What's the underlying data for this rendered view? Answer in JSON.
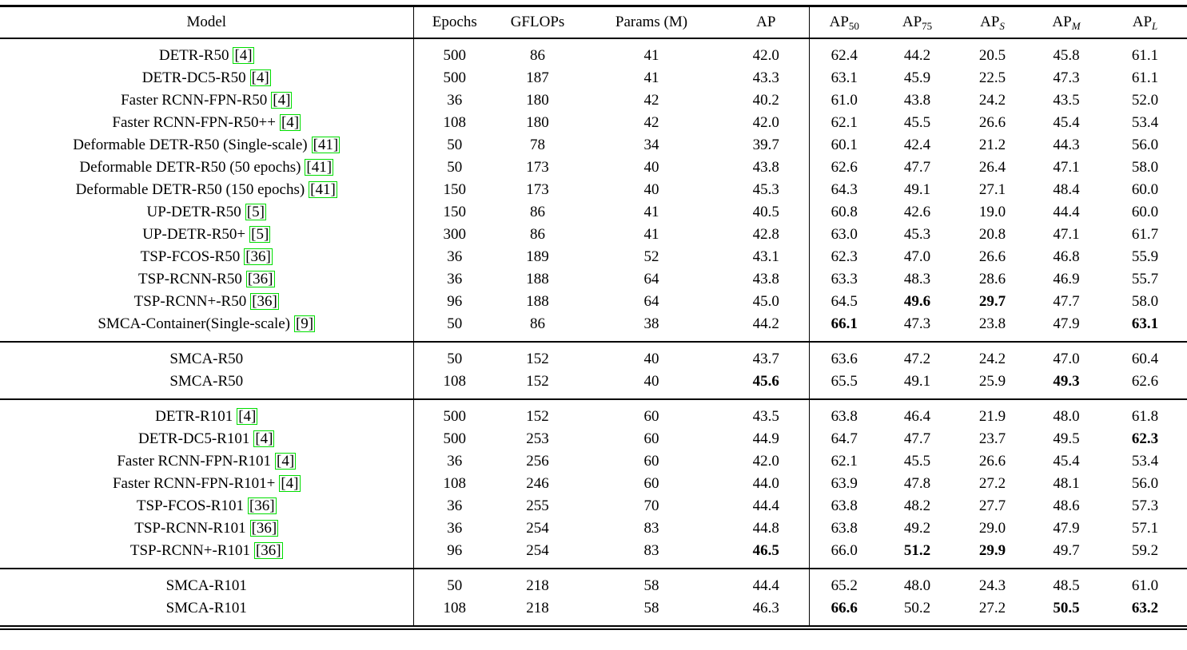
{
  "table": {
    "citation_box_color": "#00dd00",
    "header": {
      "model": "Model",
      "epochs": "Epochs",
      "gflops": "GFLOPs",
      "params": "Params (M)",
      "metrics": [
        {
          "base": "AP",
          "sub": "",
          "italic": false
        },
        {
          "base": "AP",
          "sub": "50",
          "italic": false
        },
        {
          "base": "AP",
          "sub": "75",
          "italic": false
        },
        {
          "base": "AP",
          "sub": "S",
          "italic": true
        },
        {
          "base": "AP",
          "sub": "M",
          "italic": true
        },
        {
          "base": "AP",
          "sub": "L",
          "italic": true
        }
      ]
    },
    "groups": [
      {
        "rows": [
          {
            "model": "DETR-R50",
            "cite": "4",
            "epochs": "500",
            "gflops": "86",
            "params": "41",
            "ap": [
              "42.0",
              "62.4",
              "44.2",
              "20.5",
              "45.8",
              "61.1"
            ],
            "bold": []
          },
          {
            "model": "DETR-DC5-R50",
            "cite": "4",
            "epochs": "500",
            "gflops": "187",
            "params": "41",
            "ap": [
              "43.3",
              "63.1",
              "45.9",
              "22.5",
              "47.3",
              "61.1"
            ],
            "bold": []
          },
          {
            "model": "Faster RCNN-FPN-R50",
            "cite": "4",
            "epochs": "36",
            "gflops": "180",
            "params": "42",
            "ap": [
              "40.2",
              "61.0",
              "43.8",
              "24.2",
              "43.5",
              "52.0"
            ],
            "bold": []
          },
          {
            "model": "Faster RCNN-FPN-R50++",
            "cite": "4",
            "epochs": "108",
            "gflops": "180",
            "params": "42",
            "ap": [
              "42.0",
              "62.1",
              "45.5",
              "26.6",
              "45.4",
              "53.4"
            ],
            "bold": []
          },
          {
            "model": "Deformable DETR-R50 (Single-scale)",
            "cite": "41",
            "epochs": "50",
            "gflops": "78",
            "params": "34",
            "ap": [
              "39.7",
              "60.1",
              "42.4",
              "21.2",
              "44.3",
              "56.0"
            ],
            "bold": []
          },
          {
            "model": "Deformable DETR-R50 (50 epochs)",
            "cite": "41",
            "epochs": "50",
            "gflops": "173",
            "params": "40",
            "ap": [
              "43.8",
              "62.6",
              "47.7",
              "26.4",
              "47.1",
              "58.0"
            ],
            "bold": []
          },
          {
            "model": "Deformable DETR-R50 (150 epochs)",
            "cite": "41",
            "epochs": "150",
            "gflops": "173",
            "params": "40",
            "ap": [
              "45.3",
              "64.3",
              "49.1",
              "27.1",
              "48.4",
              "60.0"
            ],
            "bold": []
          },
          {
            "model": "UP-DETR-R50",
            "cite": "5",
            "epochs": "150",
            "gflops": "86",
            "params": "41",
            "ap": [
              "40.5",
              "60.8",
              "42.6",
              "19.0",
              "44.4",
              "60.0"
            ],
            "bold": []
          },
          {
            "model": "UP-DETR-R50+",
            "cite": "5",
            "epochs": "300",
            "gflops": "86",
            "params": "41",
            "ap": [
              "42.8",
              "63.0",
              "45.3",
              "20.8",
              "47.1",
              "61.7"
            ],
            "bold": []
          },
          {
            "model": "TSP-FCOS-R50",
            "cite": "36",
            "epochs": "36",
            "gflops": "189",
            "params": "52",
            "ap": [
              "43.1",
              "62.3",
              "47.0",
              "26.6",
              "46.8",
              "55.9"
            ],
            "bold": []
          },
          {
            "model": "TSP-RCNN-R50",
            "cite": "36",
            "epochs": "36",
            "gflops": "188",
            "params": "64",
            "ap": [
              "43.8",
              "63.3",
              "48.3",
              "28.6",
              "46.9",
              "55.7"
            ],
            "bold": []
          },
          {
            "model": "TSP-RCNN+-R50",
            "cite": "36",
            "epochs": "96",
            "gflops": "188",
            "params": "64",
            "ap": [
              "45.0",
              "64.5",
              "49.6",
              "29.7",
              "47.7",
              "58.0"
            ],
            "bold": [
              2,
              3
            ]
          },
          {
            "model": "SMCA-Container(Single-scale)",
            "cite": "9",
            "epochs": "50",
            "gflops": "86",
            "params": "38",
            "ap": [
              "44.2",
              "66.1",
              "47.3",
              "23.8",
              "47.9",
              "63.1"
            ],
            "bold": [
              1,
              5
            ]
          }
        ]
      },
      {
        "rows": [
          {
            "model": "SMCA-R50",
            "cite": null,
            "epochs": "50",
            "gflops": "152",
            "params": "40",
            "ap": [
              "43.7",
              "63.6",
              "47.2",
              "24.2",
              "47.0",
              "60.4"
            ],
            "bold": []
          },
          {
            "model": "SMCA-R50",
            "cite": null,
            "epochs": "108",
            "gflops": "152",
            "params": "40",
            "ap": [
              "45.6",
              "65.5",
              "49.1",
              "25.9",
              "49.3",
              "62.6"
            ],
            "bold": [
              0,
              4
            ]
          }
        ]
      },
      {
        "rows": [
          {
            "model": "DETR-R101",
            "cite": "4",
            "epochs": "500",
            "gflops": "152",
            "params": "60",
            "ap": [
              "43.5",
              "63.8",
              "46.4",
              "21.9",
              "48.0",
              "61.8"
            ],
            "bold": []
          },
          {
            "model": "DETR-DC5-R101",
            "cite": "4",
            "epochs": "500",
            "gflops": "253",
            "params": "60",
            "ap": [
              "44.9",
              "64.7",
              "47.7",
              "23.7",
              "49.5",
              "62.3"
            ],
            "bold": [
              5
            ]
          },
          {
            "model": "Faster RCNN-FPN-R101",
            "cite": "4",
            "epochs": "36",
            "gflops": "256",
            "params": "60",
            "ap": [
              "42.0",
              "62.1",
              "45.5",
              "26.6",
              "45.4",
              "53.4"
            ],
            "bold": []
          },
          {
            "model": "Faster RCNN-FPN-R101+",
            "cite": "4",
            "epochs": "108",
            "gflops": "246",
            "params": "60",
            "ap": [
              "44.0",
              "63.9",
              "47.8",
              "27.2",
              "48.1",
              "56.0"
            ],
            "bold": []
          },
          {
            "model": "TSP-FCOS-R101",
            "cite": "36",
            "epochs": "36",
            "gflops": "255",
            "params": "70",
            "ap": [
              "44.4",
              "63.8",
              "48.2",
              "27.7",
              "48.6",
              "57.3"
            ],
            "bold": []
          },
          {
            "model": "TSP-RCNN-R101",
            "cite": "36",
            "epochs": "36",
            "gflops": "254",
            "params": "83",
            "ap": [
              "44.8",
              "63.8",
              "49.2",
              "29.0",
              "47.9",
              "57.1"
            ],
            "bold": []
          },
          {
            "model": "TSP-RCNN+-R101",
            "cite": "36",
            "epochs": "96",
            "gflops": "254",
            "params": "83",
            "ap": [
              "46.5",
              "66.0",
              "51.2",
              "29.9",
              "49.7",
              "59.2"
            ],
            "bold": [
              0,
              2,
              3
            ]
          }
        ]
      },
      {
        "rows": [
          {
            "model": "SMCA-R101",
            "cite": null,
            "epochs": "50",
            "gflops": "218",
            "params": "58",
            "ap": [
              "44.4",
              "65.2",
              "48.0",
              "24.3",
              "48.5",
              "61.0"
            ],
            "bold": []
          },
          {
            "model": "SMCA-R101",
            "cite": null,
            "epochs": "108",
            "gflops": "218",
            "params": "58",
            "ap": [
              "46.3",
              "66.6",
              "50.2",
              "27.2",
              "50.5",
              "63.2"
            ],
            "bold": [
              1,
              4,
              5
            ]
          }
        ]
      }
    ]
  }
}
